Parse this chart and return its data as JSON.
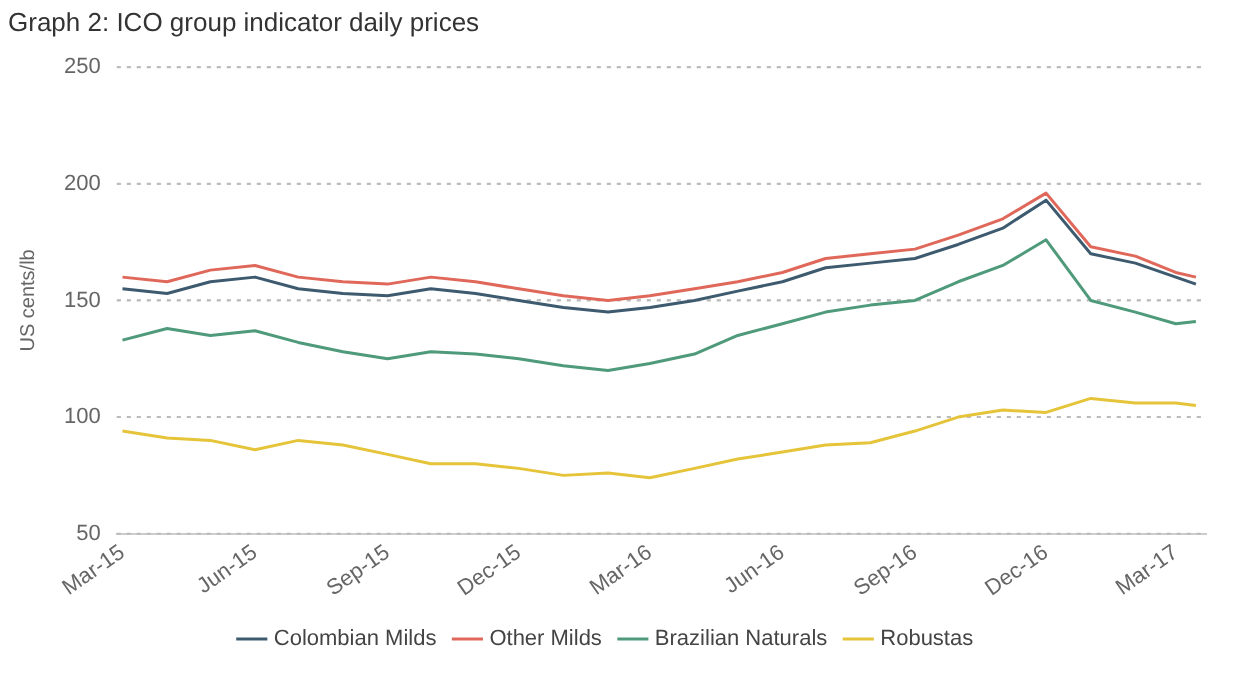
{
  "chart_data": {
    "type": "line",
    "title": "Graph 2: ICO group indicator daily prices",
    "ylabel": "US cents/lb",
    "x": [
      "2015-03-01",
      "2015-04-01",
      "2015-05-01",
      "2015-06-01",
      "2015-07-01",
      "2015-08-01",
      "2015-09-01",
      "2015-10-01",
      "2015-11-01",
      "2015-12-01",
      "2016-01-01",
      "2016-02-01",
      "2016-03-01",
      "2016-04-01",
      "2016-05-01",
      "2016-06-01",
      "2016-07-01",
      "2016-08-01",
      "2016-09-01",
      "2016-10-01",
      "2016-11-01",
      "2016-12-01",
      "2017-01-01",
      "2017-02-01",
      "2017-03-01",
      "2017-03-15"
    ],
    "series": [
      {
        "name": "Colombian Milds",
        "color": "#3d5a6e",
        "values": [
          155,
          153,
          158,
          160,
          155,
          153,
          152,
          155,
          153,
          150,
          147,
          145,
          147,
          150,
          154,
          158,
          164,
          166,
          168,
          174,
          181,
          193,
          170,
          166,
          160,
          157
        ]
      },
      {
        "name": "Other Milds",
        "color": "#e0685a",
        "values": [
          160,
          158,
          163,
          165,
          160,
          158,
          157,
          160,
          158,
          155,
          152,
          150,
          152,
          155,
          158,
          162,
          168,
          170,
          172,
          178,
          185,
          196,
          173,
          169,
          162,
          160
        ]
      },
      {
        "name": "Brazilian Naturals",
        "color": "#4e9a7a",
        "values": [
          133,
          138,
          135,
          137,
          132,
          128,
          125,
          128,
          127,
          125,
          122,
          120,
          123,
          127,
          135,
          140,
          145,
          148,
          150,
          158,
          165,
          176,
          150,
          145,
          140,
          141
        ]
      },
      {
        "name": "Robustas",
        "color": "#e5c43a",
        "values": [
          94,
          91,
          90,
          86,
          90,
          88,
          84,
          80,
          80,
          78,
          75,
          76,
          74,
          78,
          82,
          85,
          88,
          89,
          94,
          100,
          103,
          102,
          108,
          106,
          106,
          105
        ]
      }
    ],
    "xlim": [
      "2015-02-25",
      "2017-03-22"
    ],
    "xticks": [
      {
        "value": "2015-03-01",
        "label": "Mar-15"
      },
      {
        "value": "2015-06-01",
        "label": "Jun-15"
      },
      {
        "value": "2015-09-01",
        "label": "Sep-15"
      },
      {
        "value": "2015-12-01",
        "label": "Dec-15"
      },
      {
        "value": "2016-03-01",
        "label": "Mar-16"
      },
      {
        "value": "2016-06-01",
        "label": "Jun-16"
      },
      {
        "value": "2016-09-01",
        "label": "Sep-16"
      },
      {
        "value": "2016-12-01",
        "label": "Dec-16"
      },
      {
        "value": "2017-03-01",
        "label": "Mar-17"
      }
    ],
    "ylim": [
      50,
      250
    ],
    "yticks": [
      50,
      100,
      150,
      200,
      250
    ],
    "grid": "y",
    "legend": "bottom",
    "marker": "none",
    "line_style": "solid"
  }
}
